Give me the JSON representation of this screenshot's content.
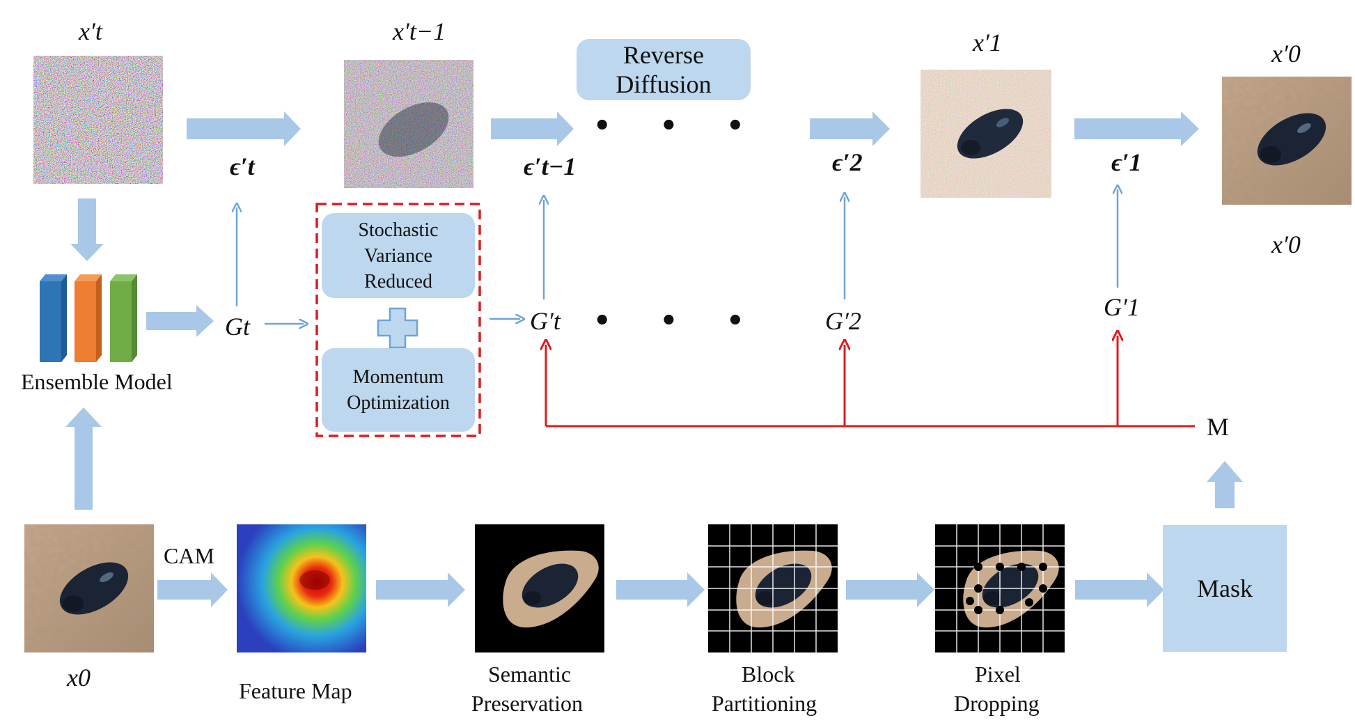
{
  "images": {
    "xt_noise": "x't noisy image",
    "xt1_noise": "x't-1 noisy image",
    "x1": "x'1 image",
    "x0p": "x'0 image",
    "x0": "x0 image",
    "feature_map": "feature map heatmap",
    "semantic": "semantic preservation",
    "block": "block partitioning",
    "pixel": "pixel dropping"
  },
  "labels": {
    "xt": "x′t",
    "xt_minus_1": "x′t−1",
    "x1": "x′1",
    "x0_top": "x′0",
    "x0_side": "x′0",
    "eps_t": "ϵ′t",
    "eps_t1": "ϵ′t−1",
    "eps_2": "ϵ′2",
    "eps_1": "ϵ′1",
    "G_t": "Gt",
    "G_t_prime": "G′t",
    "G_2": "G′2",
    "G_1": "G′1",
    "M": "M",
    "x0": "x0",
    "cam": "CAM",
    "ensemble": "Ensemble Model",
    "feature_map": "Feature Map",
    "semantic_1": "Semantic",
    "semantic_2": "Preservation",
    "block_1": "Block",
    "block_2": "Partitioning",
    "pixel_1": "Pixel",
    "pixel_2": "Dropping"
  },
  "boxes": {
    "reverse_1": "Reverse",
    "reverse_2": "Diffusion",
    "svr_1": "Stochastic",
    "svr_2": "Variance",
    "svr_3": "Reduced",
    "mom_1": "Momentum",
    "mom_2": "Optimization",
    "mask": "Mask"
  },
  "colors": {
    "arrow_blue": "#a9c8e8",
    "thin_blue": "#6fa3d8",
    "red": "#e01b1b",
    "box_fill": "#bdd7ee",
    "ensemble_blue": "#2e75b6",
    "ensemble_orange": "#ed7d31",
    "ensemble_green": "#70ad47"
  }
}
